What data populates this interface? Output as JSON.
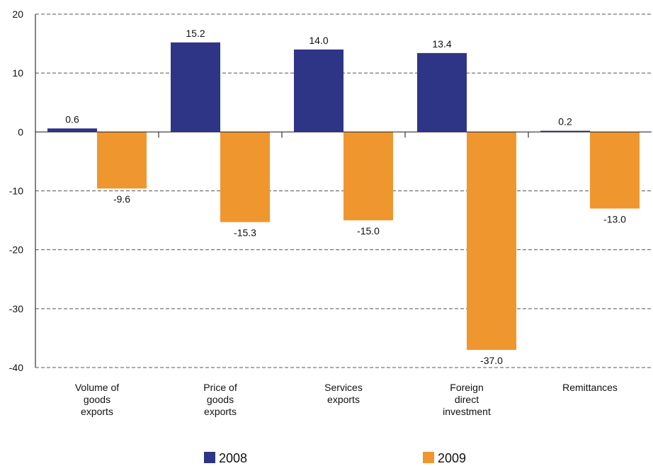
{
  "chart_data": {
    "type": "bar",
    "categories": [
      [
        "Volume of",
        "goods",
        "exports"
      ],
      [
        "Price of",
        "goods",
        "exports"
      ],
      [
        "Services",
        "exports"
      ],
      [
        "Foreign",
        "direct",
        "investment"
      ],
      [
        "Remittances"
      ]
    ],
    "series": [
      {
        "name": "2008",
        "color": "#2e3586",
        "values": [
          0.6,
          15.2,
          14.0,
          13.4,
          0.2
        ],
        "labels": [
          "0.6",
          "15.2",
          "14.0",
          "13.4",
          "0.2"
        ]
      },
      {
        "name": "2009",
        "color": "#f0962f",
        "values": [
          -9.6,
          -15.3,
          -15.0,
          -37.0,
          -13.0
        ],
        "labels": [
          "-9.6",
          "-15.3",
          "-15.0",
          "-37.0",
          "-13.0"
        ]
      }
    ],
    "ylim": [
      -40,
      20
    ],
    "yticks": [
      20,
      10,
      0,
      -10,
      -20,
      -30,
      -40
    ],
    "grid": true,
    "legend": "bottom"
  }
}
